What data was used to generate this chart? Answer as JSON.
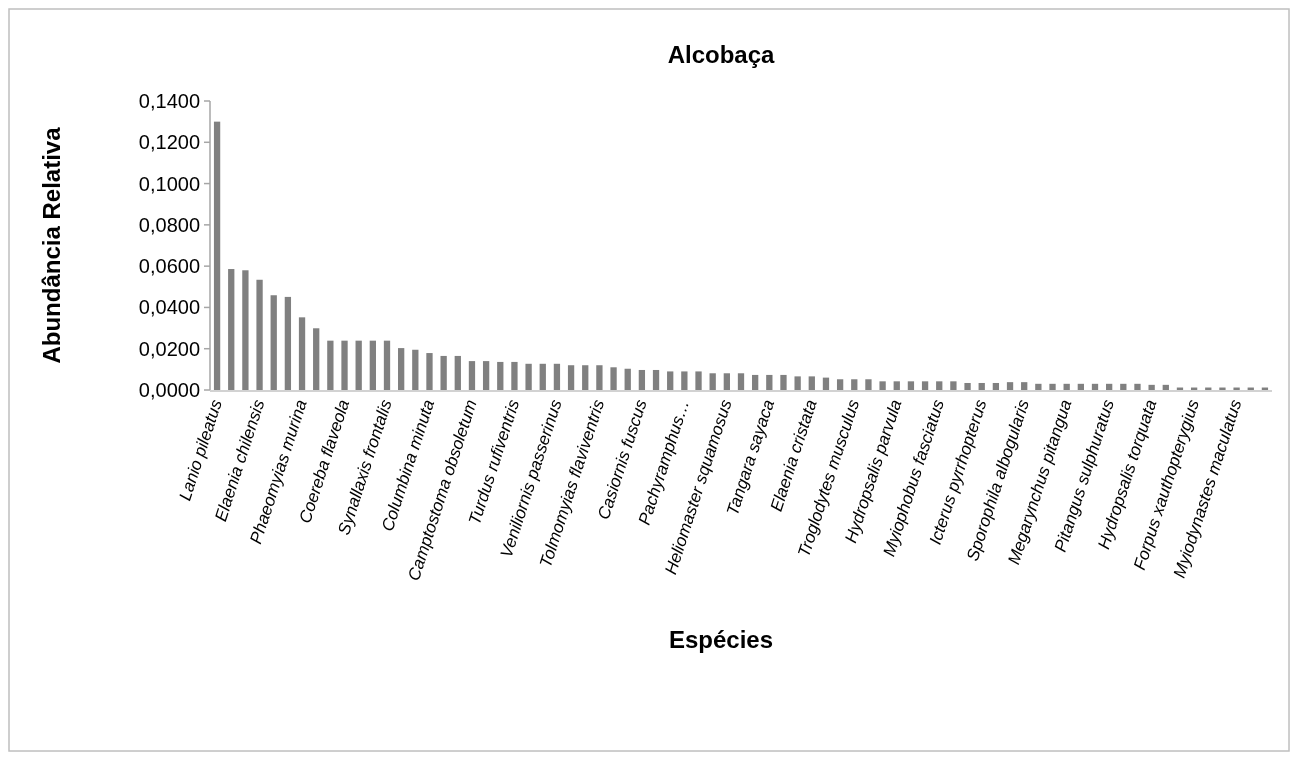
{
  "chart_data": {
    "type": "bar",
    "title": "Alcobaça",
    "xlabel": "Espécies",
    "ylabel": "Abundância Relativa",
    "categories": [
      "Lanio pileatus",
      null,
      null,
      "Elaenia chilensis",
      null,
      null,
      "Phaeomyias murina",
      null,
      null,
      "Coereba flaveola",
      null,
      null,
      "Synallaxis frontalis",
      null,
      null,
      "Columbina minuta",
      null,
      null,
      "Camptostoma obsoletum",
      null,
      null,
      "Turdus rufiventris",
      null,
      null,
      "Veniliornis passerinus",
      null,
      null,
      "Tolmomyias flaviventris",
      null,
      null,
      "Casiornis fuscus",
      null,
      null,
      "Pachyramphus…",
      null,
      null,
      "Heliomaster squamosus",
      null,
      null,
      "Tangara sayaca",
      null,
      null,
      "Elaenia cristata",
      null,
      null,
      "Troglodytes musculus",
      null,
      null,
      "Hydropsalis parvula",
      null,
      null,
      "Myiophobus fasciatus",
      null,
      null,
      "Icterus pyrrhopterus",
      null,
      null,
      "Sporophila albogularis",
      null,
      null,
      "Megarynchus pitangua",
      null,
      null,
      "Pitangus sulphuratus",
      null,
      null,
      "Hydropsalis torquata",
      null,
      null,
      "Forpus xauthopterygius",
      null,
      null,
      "Myiodynastes maculatus",
      null,
      null
    ],
    "values": [
      0.13,
      0.0586,
      0.058,
      0.0534,
      0.0459,
      0.0451,
      0.0352,
      0.0299,
      0.0239,
      0.0239,
      0.0239,
      0.0239,
      0.0239,
      0.0203,
      0.0195,
      0.0179,
      0.0165,
      0.0165,
      0.014,
      0.014,
      0.0136,
      0.0136,
      0.0127,
      0.0127,
      0.0127,
      0.012,
      0.012,
      0.012,
      0.011,
      0.0103,
      0.0097,
      0.0097,
      0.009,
      0.009,
      0.009,
      0.0081,
      0.0081,
      0.0081,
      0.0073,
      0.0073,
      0.0073,
      0.0066,
      0.0066,
      0.006,
      0.0052,
      0.0052,
      0.0052,
      0.0042,
      0.0042,
      0.0042,
      0.0042,
      0.0042,
      0.0042,
      0.0034,
      0.0034,
      0.0034,
      0.0038,
      0.0038,
      0.003,
      0.003,
      0.003,
      0.003,
      0.003,
      0.003,
      0.003,
      0.003,
      0.0025,
      0.0025,
      0.0012,
      0.0012,
      0.0012,
      0.0012,
      0.0012,
      0.0012,
      0.0012
    ],
    "color": "#808080",
    "ylim": [
      0,
      0.14
    ],
    "yticks": [
      {
        "value": 0,
        "label": "0,0000"
      },
      {
        "value": 0.02,
        "label": "0,0200"
      },
      {
        "value": 0.04,
        "label": "0,0400"
      },
      {
        "value": 0.06,
        "label": "0,0600"
      },
      {
        "value": 0.08,
        "label": "0,0800"
      },
      {
        "value": 0.1,
        "label": "0,1000"
      },
      {
        "value": 0.12,
        "label": "0,1200"
      },
      {
        "value": 0.14,
        "label": "0,1400"
      }
    ],
    "grid": false
  }
}
